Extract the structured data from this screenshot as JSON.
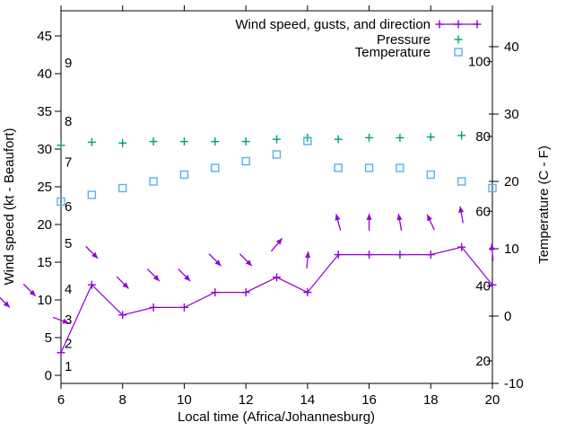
{
  "figure": {
    "xlabel": "Local time (Africa/Johannesburg)",
    "ylabel_left": "Wind speed (kt - Beaufort)",
    "ylabel_right": "Temperature (C - F)",
    "legend": [
      {
        "label": "Wind speed, gusts, and direction",
        "series": "wind"
      },
      {
        "label": "Pressure",
        "series": "pressure"
      },
      {
        "label": "Temperature",
        "series": "temperature"
      }
    ],
    "colors": {
      "wind": "#9400d3",
      "pressure": "#009e73",
      "temperature": "#56b4e9",
      "axis": "#000000"
    }
  },
  "chart_data": {
    "type": "line",
    "title": "Wind speed, gusts, and direction / Pressure / Temperature meteogram",
    "x_hours": [
      6,
      7,
      8,
      9,
      10,
      11,
      12,
      13,
      14,
      15,
      16,
      17,
      18,
      19,
      20
    ],
    "series": [
      {
        "name": "Wind speed, gusts, and direction",
        "type": "line+points",
        "marker": "plus",
        "color": "#9400d3",
        "axis": "left_kt",
        "hours": [
          6,
          7,
          8,
          9,
          10,
          11,
          12,
          13,
          14,
          15,
          16,
          17,
          18,
          19,
          20
        ],
        "values": [
          3,
          12,
          8,
          9,
          9,
          11,
          11,
          13,
          11,
          16,
          16,
          16,
          16,
          17,
          12
        ]
      },
      {
        "name": "Pressure",
        "type": "points",
        "marker": "plus",
        "color": "#009e73",
        "axis": "left_kt_unlabeled_pressure_scale",
        "hours": [
          6,
          7,
          8,
          9,
          10,
          11,
          12,
          13,
          14,
          15,
          16,
          17,
          18,
          19
        ],
        "values": [
          30.5,
          30.9,
          30.8,
          31.0,
          31.0,
          31.0,
          31.0,
          31.3,
          31.5,
          31.3,
          31.5,
          31.5,
          31.6,
          31.8
        ]
      },
      {
        "name": "Temperature",
        "type": "points",
        "marker": "open-square",
        "color": "#56b4e9",
        "axis": "right_c",
        "hours": [
          6,
          7,
          8,
          9,
          10,
          11,
          12,
          13,
          14,
          15,
          16,
          17,
          18,
          19,
          20
        ],
        "values": [
          17,
          18,
          19,
          20,
          21,
          22,
          23,
          24,
          26,
          22,
          22,
          22,
          21,
          20,
          19
        ]
      }
    ],
    "wind_direction_arrows": [
      {
        "hour": 4.14,
        "kt": 9.8,
        "angle_deg": 135
      },
      {
        "hour": 4.98,
        "kt": 11.3,
        "angle_deg": 135
      },
      {
        "hour": 6,
        "kt": 7.3,
        "angle_deg": 110
      },
      {
        "hour": 7,
        "kt": 16.3,
        "angle_deg": 135
      },
      {
        "hour": 8,
        "kt": 12.3,
        "angle_deg": 135
      },
      {
        "hour": 9,
        "kt": 13.3,
        "angle_deg": 135
      },
      {
        "hour": 10,
        "kt": 13.3,
        "angle_deg": 135
      },
      {
        "hour": 11,
        "kt": 15.3,
        "angle_deg": 135
      },
      {
        "hour": 12,
        "kt": 15.3,
        "angle_deg": 135
      },
      {
        "hour": 13,
        "kt": 17.3,
        "angle_deg": 40
      },
      {
        "hour": 14,
        "kt": 15.3,
        "angle_deg": 5
      },
      {
        "hour": 15,
        "kt": 20.3,
        "angle_deg": -15
      },
      {
        "hour": 16,
        "kt": 20.3,
        "angle_deg": 0
      },
      {
        "hour": 17,
        "kt": 20.3,
        "angle_deg": -10
      },
      {
        "hour": 18,
        "kt": 20.3,
        "angle_deg": -25
      },
      {
        "hour": 19,
        "kt": 21.3,
        "angle_deg": -10
      },
      {
        "hour": 20,
        "kt": 16.3,
        "angle_deg": -5
      }
    ],
    "axes": {
      "x": {
        "label": "Local time (Africa/Johannesburg)",
        "range": [
          6,
          20
        ],
        "ticks": [
          6,
          8,
          10,
          12,
          14,
          16,
          18,
          20
        ]
      },
      "y_left": {
        "label": "Wind speed (kt - Beaufort)",
        "range_kt": [
          -1.1,
          48.3
        ],
        "ticks_kt": [
          0,
          5,
          10,
          15,
          20,
          25,
          30,
          35,
          40,
          45
        ],
        "beaufort_labels": [
          {
            "b": "1",
            "kt": 1.2
          },
          {
            "b": "2",
            "kt": 4.2
          },
          {
            "b": "3",
            "kt": 7.4
          },
          {
            "b": "4",
            "kt": 11.4
          },
          {
            "b": "5",
            "kt": 17.5
          },
          {
            "b": "6",
            "kt": 22.4
          },
          {
            "b": "7",
            "kt": 28.3
          },
          {
            "b": "8",
            "kt": 33.7
          },
          {
            "b": "9",
            "kt": 41.4
          }
        ]
      },
      "y_right": {
        "label": "Temperature (C - F)",
        "range_c": [
          -10,
          45.3
        ],
        "ticks_c": [
          -10,
          0,
          10,
          20,
          30,
          40
        ],
        "fahrenheit_labels": [
          20,
          40,
          60,
          80,
          100
        ]
      }
    },
    "grid": false,
    "legend_position": "top-right-inside"
  }
}
